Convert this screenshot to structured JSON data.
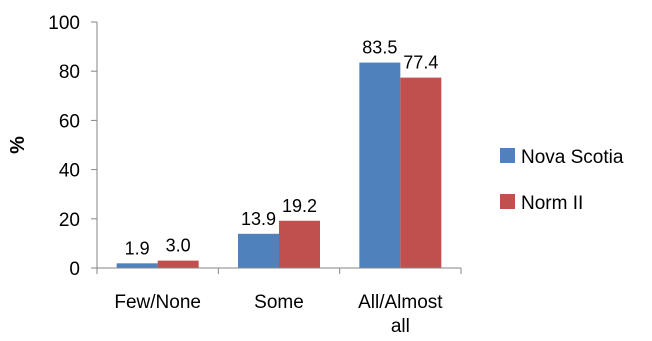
{
  "chart_data": {
    "type": "bar",
    "categories": [
      "Few/None",
      "Some",
      "All/Almost all"
    ],
    "category_lines": [
      [
        "Few/None"
      ],
      [
        "Some"
      ],
      [
        "All/Almost",
        "all"
      ]
    ],
    "series": [
      {
        "name": "Nova Scotia",
        "values": [
          1.9,
          13.9,
          83.5
        ],
        "labels": [
          "1.9",
          "13.9",
          "83.5"
        ],
        "color": "#4F81BD"
      },
      {
        "name": "Norm II",
        "values": [
          3.0,
          19.2,
          77.4
        ],
        "labels": [
          "3.0",
          "19.2",
          "77.4"
        ],
        "color": "#C0504D"
      }
    ],
    "ylabel": "%",
    "xlabel": "",
    "ylim": [
      0,
      100
    ],
    "yticks": [
      0,
      20,
      40,
      60,
      80,
      100
    ],
    "grid": false,
    "legend_position": "right"
  }
}
